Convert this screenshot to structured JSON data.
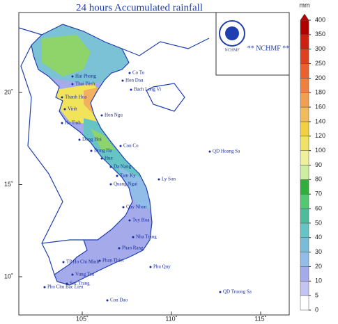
{
  "title": "24 hours Accumulated rainfall",
  "logo": {
    "label": "NCHMF",
    "caption": "** NCHMF **"
  },
  "colorbar": {
    "unit": "mm",
    "ticks": [
      0,
      5,
      10,
      20,
      30,
      40,
      50,
      60,
      70,
      80,
      90,
      100,
      120,
      140,
      160,
      180,
      200,
      250,
      300,
      350,
      400
    ],
    "colors": [
      "#ffffff",
      "#c4c4f2",
      "#a4aaea",
      "#92bde8",
      "#78bcd8",
      "#66c4c4",
      "#4cbc9c",
      "#52c870",
      "#2fae3c",
      "#cdeea0",
      "#eef09c",
      "#f0e264",
      "#f2d040",
      "#f2bc5c",
      "#f0a050",
      "#ee8040",
      "#ec6030",
      "#de4020",
      "#cc2010",
      "#b00000"
    ]
  },
  "lat_ticks": [
    {
      "value": 20,
      "label": "20˚"
    },
    {
      "value": 15,
      "label": "15˚"
    },
    {
      "value": 10,
      "label": "10˚"
    }
  ],
  "lon_ticks": [
    {
      "value": 105,
      "label": "105˚"
    },
    {
      "value": 110,
      "label": "110˚"
    },
    {
      "value": 115,
      "label": "115˚"
    }
  ],
  "places": [
    "Co To",
    "Hon Dau",
    "Bach Long Vi",
    "Hai Phong",
    "Thai Binh",
    "Thanh Hoa",
    "Hon Ngu",
    "Vinh",
    "Ha Tinh",
    "Dong Hoi",
    "Con Co",
    "Dong Ha",
    "Hue",
    "Da Nang",
    "Tam Ky",
    "Quang Ngai",
    "Ly Son",
    "QD Hoang Sa",
    "Quy Nhon",
    "Tuy Hoa",
    "Nha Trang",
    "Phan Rang",
    "Phan Thiet",
    "TP Ho Chi Minh",
    "Phu Quy",
    "Vung Tau",
    "Soc Trang",
    "Pho Chu Bac Lieu",
    "Con Dao",
    "QD Truong Sa"
  ]
}
